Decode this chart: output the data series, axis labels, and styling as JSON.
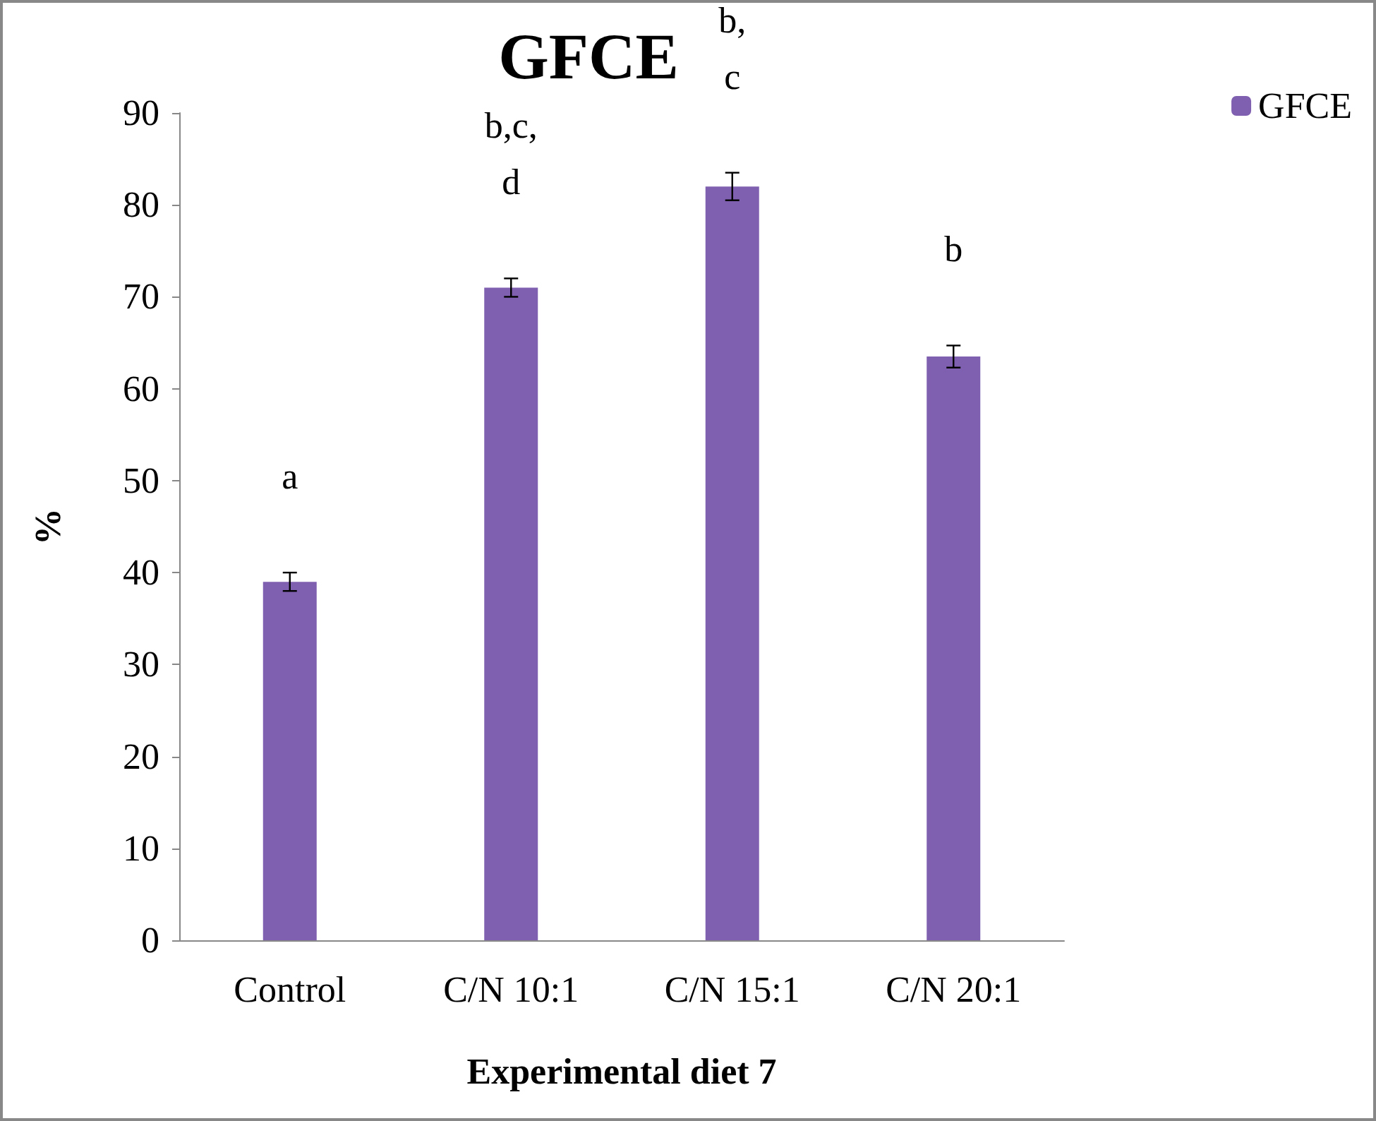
{
  "chart_data": {
    "type": "bar",
    "title": "GFCE",
    "xlabel": "Experimental diet 7",
    "ylabel": "%",
    "categories": [
      "Control",
      "C/N 10:1",
      "C/N 15:1",
      "C/N 20:1"
    ],
    "series": [
      {
        "name": "GFCE",
        "color": "#7f5fb0",
        "values": [
          39,
          71,
          82,
          63.5
        ],
        "errors": [
          1,
          1,
          1.5,
          1.2
        ]
      }
    ],
    "ylim": [
      0,
      90
    ],
    "yticks": [
      0,
      10,
      20,
      30,
      40,
      50,
      60,
      70,
      80,
      90
    ],
    "grid": false,
    "legend": "top right",
    "annotations": [
      "a",
      "b,c,\nd",
      "b,\nc",
      "b"
    ]
  }
}
